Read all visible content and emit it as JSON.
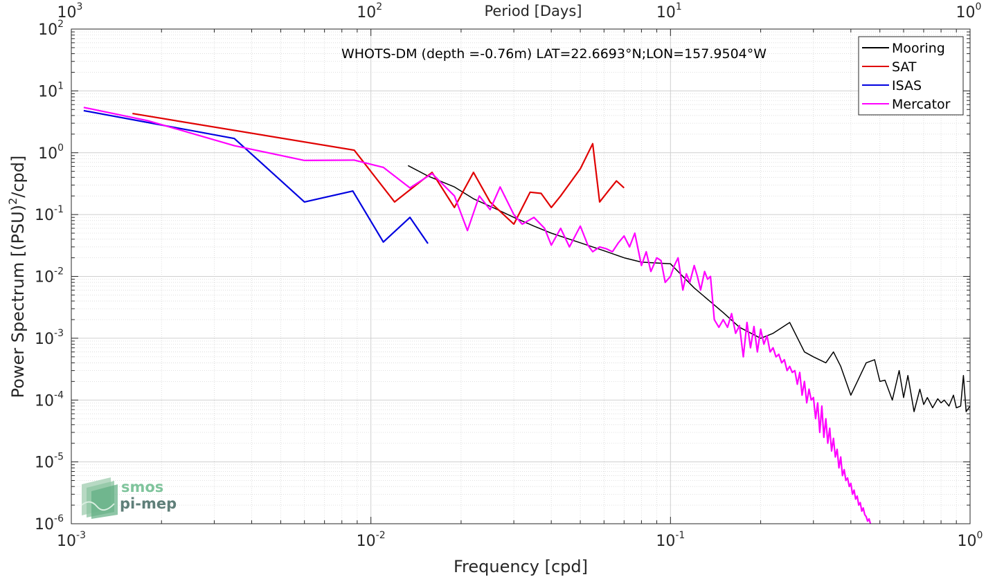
{
  "chart_data": {
    "type": "line",
    "title": "WHOTS-DM (depth =-0.76m) LAT=22.6693°N;LON=157.9504°W",
    "xlabel": "Frequency [cpd]",
    "ylabel_main": "Power Spectrum [(PSU)",
    "ylabel_sup": "2",
    "ylabel_tail": "/cpd]",
    "top_xlabel": "Period [Days]",
    "xscale": "log",
    "yscale": "log",
    "xlim": [
      0.001,
      1
    ],
    "ylim": [
      1e-06,
      100
    ],
    "grid": true,
    "legend_position": "top-right",
    "x_ticks": [
      {
        "value": 0.001,
        "base": "10",
        "exp": "-3"
      },
      {
        "value": 0.01,
        "base": "10",
        "exp": "-2"
      },
      {
        "value": 0.1,
        "base": "10",
        "exp": "-1"
      },
      {
        "value": 1,
        "base": "10",
        "exp": "0"
      }
    ],
    "top_ticks": [
      {
        "value": 0.001,
        "base": "10",
        "exp": "3"
      },
      {
        "value": 0.01,
        "base": "10",
        "exp": "2"
      },
      {
        "value": 0.1,
        "base": "10",
        "exp": "1"
      },
      {
        "value": 1,
        "base": "10",
        "exp": "0"
      }
    ],
    "y_ticks": [
      {
        "value": 100,
        "base": "10",
        "exp": "2"
      },
      {
        "value": 10,
        "base": "10",
        "exp": "1"
      },
      {
        "value": 1,
        "base": "10",
        "exp": "0"
      },
      {
        "value": 0.1,
        "base": "10",
        "exp": "-1"
      },
      {
        "value": 0.01,
        "base": "10",
        "exp": "-2"
      },
      {
        "value": 0.001,
        "base": "10",
        "exp": "-3"
      },
      {
        "value": 0.0001,
        "base": "10",
        "exp": "-4"
      },
      {
        "value": 1e-05,
        "base": "10",
        "exp": "-5"
      },
      {
        "value": 1e-06,
        "base": "10",
        "exp": "-6"
      }
    ],
    "series": [
      {
        "name": "Mooring",
        "color": "#000000",
        "x": [
          0.0133,
          0.0155,
          0.019,
          0.022,
          0.026,
          0.03,
          0.035,
          0.04,
          0.05,
          0.06,
          0.07,
          0.08,
          0.1,
          0.12,
          0.15,
          0.17,
          0.2,
          0.22,
          0.25,
          0.28,
          0.3,
          0.33,
          0.35,
          0.37,
          0.4,
          0.45,
          0.48,
          0.5,
          0.52,
          0.55,
          0.58,
          0.6,
          0.62,
          0.65,
          0.68,
          0.7,
          0.72,
          0.75,
          0.78,
          0.8,
          0.82,
          0.85,
          0.88,
          0.9,
          0.93,
          0.95,
          0.97,
          1.0
        ],
        "y": [
          0.62,
          0.42,
          0.28,
          0.18,
          0.125,
          0.09,
          0.065,
          0.05,
          0.035,
          0.026,
          0.02,
          0.017,
          0.016,
          0.0065,
          0.0026,
          0.0015,
          0.001,
          0.0012,
          0.0018,
          0.0006,
          0.0005,
          0.0004,
          0.0006,
          0.00035,
          0.00012,
          0.0004,
          0.00045,
          0.0002,
          0.00021,
          0.0001,
          0.0003,
          0.00011,
          0.00025,
          6.5e-05,
          0.00015,
          8.5e-05,
          0.00011,
          7.5e-05,
          0.000105,
          9e-05,
          0.0001,
          8e-05,
          0.00012,
          7.5e-05,
          8e-05,
          0.00025,
          6.5e-05,
          8e-05
        ]
      },
      {
        "name": "SAT",
        "color": "#e00000",
        "x": [
          0.0016,
          0.0088,
          0.012,
          0.016,
          0.019,
          0.022,
          0.025,
          0.03,
          0.034,
          0.037,
          0.04,
          0.043,
          0.05,
          0.055,
          0.058,
          0.062,
          0.066,
          0.07
        ],
        "y": [
          4.3,
          1.1,
          0.16,
          0.48,
          0.13,
          0.48,
          0.16,
          0.07,
          0.23,
          0.22,
          0.13,
          0.2,
          0.55,
          1.4,
          0.16,
          0.24,
          0.35,
          0.27
        ]
      },
      {
        "name": "ISAS",
        "color": "#0000e0",
        "x": [
          0.0011,
          0.0035,
          0.006,
          0.0087,
          0.011,
          0.0135,
          0.0155
        ],
        "y": [
          4.8,
          1.7,
          0.16,
          0.24,
          0.036,
          0.09,
          0.034
        ]
      },
      {
        "name": "Mercator",
        "color": "#ff00ff",
        "x": [
          0.0011,
          0.0018,
          0.0035,
          0.006,
          0.0088,
          0.011,
          0.0135,
          0.016,
          0.019,
          0.021,
          0.023,
          0.025,
          0.027,
          0.03,
          0.032,
          0.035,
          0.038,
          0.04,
          0.043,
          0.046,
          0.05,
          0.053,
          0.055,
          0.058,
          0.061,
          0.064,
          0.067,
          0.07,
          0.073,
          0.076,
          0.08,
          0.083,
          0.086,
          0.09,
          0.093,
          0.096,
          0.1,
          0.103,
          0.106,
          0.11,
          0.113,
          0.116,
          0.12,
          0.123,
          0.126,
          0.13,
          0.133,
          0.136,
          0.14,
          0.145,
          0.15,
          0.155,
          0.16,
          0.165,
          0.17,
          0.175,
          0.18,
          0.185,
          0.19,
          0.195,
          0.2,
          0.205,
          0.21,
          0.215,
          0.22,
          0.225,
          0.23,
          0.235,
          0.24,
          0.245,
          0.25,
          0.255,
          0.26,
          0.265,
          0.27,
          0.275,
          0.28,
          0.285,
          0.29,
          0.295,
          0.3,
          0.305,
          0.31,
          0.315,
          0.32,
          0.325,
          0.33,
          0.335,
          0.34,
          0.345,
          0.35,
          0.355,
          0.36,
          0.365,
          0.37,
          0.375,
          0.38,
          0.385,
          0.39,
          0.395,
          0.4,
          0.405,
          0.41,
          0.415,
          0.42,
          0.425,
          0.43,
          0.435,
          0.44,
          0.445,
          0.45,
          0.455,
          0.46,
          0.465,
          0.47,
          0.475
        ],
        "y": [
          5.4,
          3.3,
          1.3,
          0.75,
          0.76,
          0.58,
          0.27,
          0.46,
          0.2,
          0.055,
          0.2,
          0.12,
          0.28,
          0.1,
          0.07,
          0.09,
          0.06,
          0.032,
          0.06,
          0.03,
          0.065,
          0.032,
          0.025,
          0.03,
          0.028,
          0.025,
          0.035,
          0.045,
          0.03,
          0.05,
          0.015,
          0.025,
          0.012,
          0.02,
          0.018,
          0.008,
          0.01,
          0.015,
          0.02,
          0.006,
          0.011,
          0.008,
          0.015,
          0.01,
          0.006,
          0.012,
          0.009,
          0.01,
          0.002,
          0.0015,
          0.002,
          0.0015,
          0.0025,
          0.0012,
          0.0016,
          0.0005,
          0.0018,
          0.0007,
          0.00155,
          0.0006,
          0.0014,
          0.0008,
          0.0011,
          0.0006,
          0.0007,
          0.0005,
          0.00055,
          0.0004,
          0.00045,
          0.0003,
          0.00035,
          0.00028,
          0.0003,
          0.00018,
          0.00028,
          0.00012,
          0.0002,
          9e-05,
          0.00015,
          0.0001,
          0.00011,
          5e-05,
          9e-05,
          3e-05,
          8e-05,
          2.5e-05,
          5e-05,
          2e-05,
          3.5e-05,
          1.5e-05,
          2.4e-05,
          1.2e-05,
          1.6e-05,
          8e-06,
          1.2e-05,
          6e-06,
          7.5e-06,
          5e-06,
          5.5e-06,
          4e-06,
          4.5e-06,
          3e-06,
          3.5e-06,
          2.5e-06,
          2.8e-06,
          2e-06,
          2.2e-06,
          1.6e-06,
          1.8e-06,
          1.4e-06,
          1.3e-06,
          1.1e-06,
          1.2e-06,
          1e-06,
          9.5e-07,
          9e-07
        ]
      }
    ]
  },
  "logo": {
    "line1": "smos",
    "line2": "pi-mep"
  }
}
